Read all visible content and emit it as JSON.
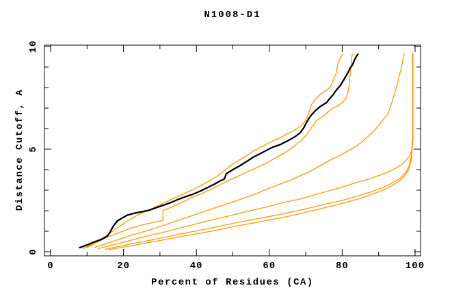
{
  "chart_data": {
    "type": "line",
    "title": "N1008-D1",
    "xlabel": "Percent of Residues (CA)",
    "ylabel": "Distance Cutoff, A",
    "xlim": [
      0,
      100
    ],
    "ylim": [
      0,
      10
    ],
    "grid": false,
    "legend_position": "none",
    "frame": {
      "mirrored_ticks": true,
      "tick_direction": "in"
    },
    "colors": {
      "frame": "#000000",
      "text": "#000000",
      "highlight_series": "#000000",
      "comparison_series": "#ff9800",
      "background": "#ffffff"
    },
    "x_major_ticks": [
      {
        "value": 0,
        "label": "0"
      },
      {
        "value": 20,
        "label": "20"
      },
      {
        "value": 40,
        "label": "40"
      },
      {
        "value": 60,
        "label": "60"
      },
      {
        "value": 80,
        "label": "80"
      },
      {
        "value": 100,
        "label": "100"
      }
    ],
    "x_minor_ticks": [
      10,
      30,
      50,
      70,
      90
    ],
    "y_major_ticks": [
      {
        "value": 0,
        "label": "0"
      },
      {
        "value": 5,
        "label": "5"
      },
      {
        "value": 10,
        "label": "10"
      }
    ],
    "y_minor_ticks": [
      1,
      2,
      3,
      4,
      6,
      7,
      8,
      9
    ],
    "series": [
      {
        "name": "orange-curve-1",
        "color": "#ff9800",
        "width": 1.3,
        "points": [
          [
            9,
            0.15
          ],
          [
            12,
            0.45
          ],
          [
            15,
            0.75
          ],
          [
            17,
            1.0
          ],
          [
            19,
            1.25
          ],
          [
            21.5,
            1.55
          ],
          [
            24,
            1.8
          ],
          [
            26.5,
            2.0
          ],
          [
            29,
            2.2
          ],
          [
            31.5,
            2.42
          ],
          [
            34,
            2.62
          ],
          [
            36.5,
            2.82
          ],
          [
            39,
            3.02
          ],
          [
            41.5,
            3.25
          ],
          [
            44,
            3.5
          ],
          [
            46,
            3.72
          ],
          [
            48,
            4.0
          ],
          [
            50,
            4.28
          ],
          [
            52,
            4.5
          ],
          [
            54,
            4.7
          ],
          [
            55.5,
            4.9
          ],
          [
            57.5,
            5.08
          ],
          [
            59.5,
            5.27
          ],
          [
            61.5,
            5.45
          ],
          [
            63.5,
            5.6
          ],
          [
            65,
            5.75
          ],
          [
            66.8,
            5.92
          ],
          [
            68.7,
            6.12
          ],
          [
            69.9,
            6.38
          ],
          [
            70.8,
            6.75
          ],
          [
            71.5,
            7.15
          ],
          [
            72.7,
            7.45
          ],
          [
            74.3,
            7.72
          ],
          [
            75.9,
            7.9
          ],
          [
            76.8,
            8.05
          ],
          [
            77.7,
            8.4
          ],
          [
            78.4,
            8.72
          ],
          [
            78.7,
            9.05
          ],
          [
            79.1,
            9.3
          ],
          [
            79.6,
            9.5
          ],
          [
            80.2,
            9.62
          ]
        ]
      },
      {
        "name": "orange-curve-2",
        "color": "#ff9800",
        "width": 1.3,
        "points": [
          [
            10,
            0.2
          ],
          [
            13,
            0.5
          ],
          [
            16,
            0.75
          ],
          [
            19,
            0.95
          ],
          [
            22,
            1.15
          ],
          [
            25,
            1.3
          ],
          [
            28,
            1.42
          ],
          [
            30.8,
            1.52
          ],
          [
            30.8,
            2.0
          ],
          [
            33.5,
            2.2
          ],
          [
            36,
            2.4
          ],
          [
            38.5,
            2.62
          ],
          [
            41,
            2.8
          ],
          [
            43.5,
            3.0
          ],
          [
            46,
            3.22
          ],
          [
            48.5,
            3.45
          ],
          [
            50.5,
            3.6
          ],
          [
            53,
            3.82
          ],
          [
            56,
            4.05
          ],
          [
            59,
            4.3
          ],
          [
            62,
            4.6
          ],
          [
            64.5,
            4.85
          ],
          [
            66.5,
            5.1
          ],
          [
            68.5,
            5.4
          ],
          [
            70,
            5.65
          ],
          [
            71,
            5.9
          ],
          [
            72,
            6.15
          ],
          [
            73,
            6.4
          ],
          [
            74.9,
            6.62
          ],
          [
            76.2,
            6.82
          ],
          [
            77.4,
            7.0
          ],
          [
            79,
            7.12
          ],
          [
            80.2,
            7.3
          ],
          [
            81.2,
            7.52
          ],
          [
            81.6,
            7.8
          ],
          [
            81.9,
            8.1
          ],
          [
            82.1,
            8.5
          ],
          [
            82.3,
            8.8
          ],
          [
            82.5,
            9.15
          ],
          [
            82.6,
            9.45
          ],
          [
            82.8,
            9.62
          ]
        ]
      },
      {
        "name": "orange-curve-3",
        "color": "#ff9800",
        "width": 1.3,
        "points": [
          [
            12,
            0.2
          ],
          [
            17,
            0.5
          ],
          [
            22,
            0.8
          ],
          [
            27,
            1.05
          ],
          [
            32,
            1.35
          ],
          [
            37,
            1.65
          ],
          [
            42,
            1.95
          ],
          [
            47,
            2.25
          ],
          [
            52,
            2.55
          ],
          [
            56,
            2.8
          ],
          [
            60,
            3.1
          ],
          [
            63,
            3.3
          ],
          [
            66,
            3.5
          ],
          [
            69,
            3.75
          ],
          [
            71,
            3.9
          ],
          [
            73,
            4.1
          ],
          [
            75,
            4.3
          ],
          [
            77,
            4.5
          ],
          [
            79,
            4.65
          ],
          [
            81,
            4.85
          ],
          [
            83,
            5.05
          ],
          [
            85,
            5.3
          ],
          [
            87,
            5.6
          ],
          [
            88.5,
            5.85
          ],
          [
            90,
            6.15
          ],
          [
            91.5,
            6.5
          ],
          [
            92.6,
            6.72
          ],
          [
            93,
            6.95
          ],
          [
            93.5,
            7.2
          ],
          [
            94,
            7.5
          ],
          [
            94.5,
            7.8
          ],
          [
            95,
            8.1
          ],
          [
            95.5,
            8.45
          ],
          [
            96,
            8.8
          ],
          [
            96.4,
            9.1
          ],
          [
            96.7,
            9.4
          ],
          [
            97,
            9.65
          ]
        ]
      },
      {
        "name": "orange-curve-4",
        "color": "#ff9800",
        "width": 1.3,
        "points": [
          [
            13,
            0.15
          ],
          [
            19,
            0.42
          ],
          [
            25,
            0.7
          ],
          [
            31,
            0.95
          ],
          [
            37,
            1.22
          ],
          [
            43,
            1.5
          ],
          [
            49,
            1.75
          ],
          [
            54,
            1.97
          ],
          [
            59,
            2.17
          ],
          [
            64,
            2.4
          ],
          [
            68,
            2.55
          ],
          [
            72,
            2.75
          ],
          [
            76,
            2.95
          ],
          [
            80,
            3.15
          ],
          [
            84,
            3.38
          ],
          [
            88,
            3.58
          ],
          [
            91,
            3.78
          ],
          [
            93,
            3.92
          ],
          [
            95,
            4.1
          ],
          [
            96.5,
            4.28
          ],
          [
            97.5,
            4.45
          ],
          [
            98.5,
            4.68
          ],
          [
            99.1,
            4.95
          ],
          [
            99.4,
            5.4
          ],
          [
            99.4,
            9.7
          ]
        ]
      },
      {
        "name": "orange-curve-5",
        "color": "#ff9800",
        "width": 1.3,
        "points": [
          [
            15,
            0.12
          ],
          [
            22,
            0.38
          ],
          [
            29,
            0.62
          ],
          [
            36,
            0.88
          ],
          [
            43,
            1.12
          ],
          [
            50,
            1.38
          ],
          [
            57,
            1.62
          ],
          [
            63,
            1.82
          ],
          [
            69,
            2.05
          ],
          [
            75,
            2.3
          ],
          [
            80,
            2.5
          ],
          [
            84,
            2.7
          ],
          [
            88,
            2.92
          ],
          [
            91,
            3.12
          ],
          [
            93.2,
            3.3
          ],
          [
            95,
            3.48
          ],
          [
            96.5,
            3.68
          ],
          [
            97.6,
            3.9
          ],
          [
            98.4,
            4.2
          ],
          [
            99,
            4.7
          ],
          [
            99.3,
            5.6
          ],
          [
            99.3,
            9.65
          ]
        ]
      },
      {
        "name": "orange-curve-6",
        "color": "#ff9800",
        "width": 1.3,
        "points": [
          [
            16,
            0.1
          ],
          [
            23,
            0.32
          ],
          [
            30,
            0.55
          ],
          [
            37,
            0.78
          ],
          [
            44,
            1.0
          ],
          [
            51,
            1.25
          ],
          [
            58,
            1.48
          ],
          [
            64,
            1.68
          ],
          [
            70,
            1.92
          ],
          [
            76,
            2.18
          ],
          [
            81,
            2.4
          ],
          [
            85,
            2.6
          ],
          [
            89,
            2.85
          ],
          [
            92,
            3.06
          ],
          [
            94,
            3.26
          ],
          [
            95.6,
            3.45
          ],
          [
            97,
            3.66
          ],
          [
            98.3,
            4.0
          ],
          [
            99.1,
            4.6
          ],
          [
            99.3,
            5.4
          ]
        ]
      },
      {
        "name": "black-curve",
        "color": "#000000",
        "width": 2.3,
        "points": [
          [
            8,
            0.2
          ],
          [
            10,
            0.33
          ],
          [
            12,
            0.48
          ],
          [
            14,
            0.6
          ],
          [
            15.5,
            0.75
          ],
          [
            16.3,
            0.95
          ],
          [
            17.2,
            1.25
          ],
          [
            18.3,
            1.5
          ],
          [
            19.5,
            1.63
          ],
          [
            21,
            1.78
          ],
          [
            23,
            1.88
          ],
          [
            25,
            1.95
          ],
          [
            27,
            2.02
          ],
          [
            29,
            2.15
          ],
          [
            31,
            2.27
          ],
          [
            33,
            2.4
          ],
          [
            35,
            2.55
          ],
          [
            37,
            2.68
          ],
          [
            39,
            2.8
          ],
          [
            41,
            2.95
          ],
          [
            43,
            3.12
          ],
          [
            45,
            3.3
          ],
          [
            46.5,
            3.45
          ],
          [
            47.7,
            3.55
          ],
          [
            48.2,
            3.8
          ],
          [
            50,
            4.0
          ],
          [
            52,
            4.2
          ],
          [
            54,
            4.42
          ],
          [
            55.5,
            4.6
          ],
          [
            57.5,
            4.78
          ],
          [
            59,
            4.92
          ],
          [
            61,
            5.1
          ],
          [
            63,
            5.22
          ],
          [
            65,
            5.4
          ],
          [
            67,
            5.6
          ],
          [
            68.5,
            5.8
          ],
          [
            69.5,
            6.05
          ],
          [
            70.2,
            6.3
          ],
          [
            70.7,
            6.45
          ],
          [
            71.5,
            6.65
          ],
          [
            72.5,
            6.85
          ],
          [
            74,
            7.08
          ],
          [
            75.8,
            7.28
          ],
          [
            76.5,
            7.45
          ],
          [
            77.5,
            7.65
          ],
          [
            78.5,
            7.9
          ],
          [
            79.5,
            8.1
          ],
          [
            80.5,
            8.4
          ],
          [
            81.5,
            8.7
          ],
          [
            82.2,
            8.95
          ],
          [
            82.8,
            9.1
          ],
          [
            83.4,
            9.35
          ],
          [
            84,
            9.55
          ],
          [
            84.3,
            9.62
          ]
        ]
      }
    ]
  }
}
